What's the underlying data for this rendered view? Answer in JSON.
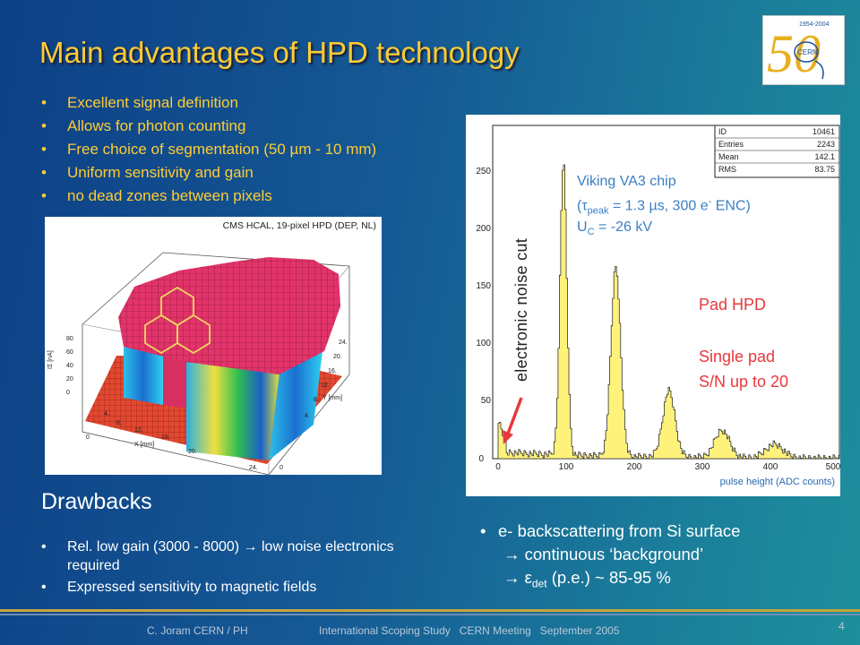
{
  "title": "Main advantages of HPD technology",
  "advantages": [
    "Excellent signal definition",
    "Allows for photon counting",
    "Free choice of segmentation (50 µm - 10 mm)",
    "Uniform sensitivity and gain",
    "no dead zones between pixels"
  ],
  "logo": {
    "years": "1954-2004",
    "number": "50",
    "org": "CERN"
  },
  "hcal_plot": {
    "caption": "CMS HCAL, 19-pixel HPD (DEP, NL)",
    "axis_i": "IΣ [nA]",
    "axis_x": "X [mm]",
    "axis_y": "Y [mm]",
    "ticks_i": [
      "80",
      "60",
      "40",
      "20",
      "0"
    ],
    "ticks_x": [
      "0",
      "4.",
      "8.",
      "12.",
      "16.",
      "20.",
      "24."
    ],
    "ticks_y": [
      "24.",
      "20.",
      "16.",
      "12.",
      "8.",
      "4.",
      "0"
    ]
  },
  "histogram": {
    "stats": [
      {
        "label": "ID",
        "value": "10461"
      },
      {
        "label": "Entries",
        "value": "2243"
      },
      {
        "label": "Mean",
        "value": "142.1"
      },
      {
        "label": "RMS",
        "value": "83.75"
      }
    ],
    "x_ticks": [
      "0",
      "100",
      "200",
      "300",
      "400",
      "500"
    ],
    "y_ticks": [
      "0",
      "50",
      "100",
      "150",
      "200",
      "250"
    ],
    "xlabel": "pulse height (ADC counts)",
    "bar_color": "#fff27a"
  },
  "chip": {
    "line1": "Viking VA3 chip",
    "line2_open": "(τ",
    "line2_sub": "peak",
    "line2_mid": " = 1.3 µs, 300 e",
    "line2_sup": "-",
    "line2_end": " ENC)",
    "line3_u": "U",
    "line3_sub": "C",
    "line3_val": " = -26 kV"
  },
  "noise_cut_label": "electronic noise cut",
  "pad": {
    "line1": "Pad HPD",
    "line2": "Single pad",
    "line3": "S/N up to 20"
  },
  "drawbacks": {
    "title": "Drawbacks",
    "items": [
      "Rel. low gain (3000 - 8000) → low noise electronics required",
      "Expressed sensitivity to magnetic fields"
    ]
  },
  "backscatter": {
    "line1": "e- backscattering from Si surface",
    "line2": "→ continuous ‘background’",
    "line3_arrow": "→ ",
    "line3_eps": "ε",
    "line3_sub": "det",
    "line3_end": " (p.e.) ~ 85-95 %"
  },
  "footer": {
    "author": "C. Joram CERN / PH",
    "meeting": "International Scoping Study   CERN Meeting   September 2005",
    "page": "4"
  }
}
